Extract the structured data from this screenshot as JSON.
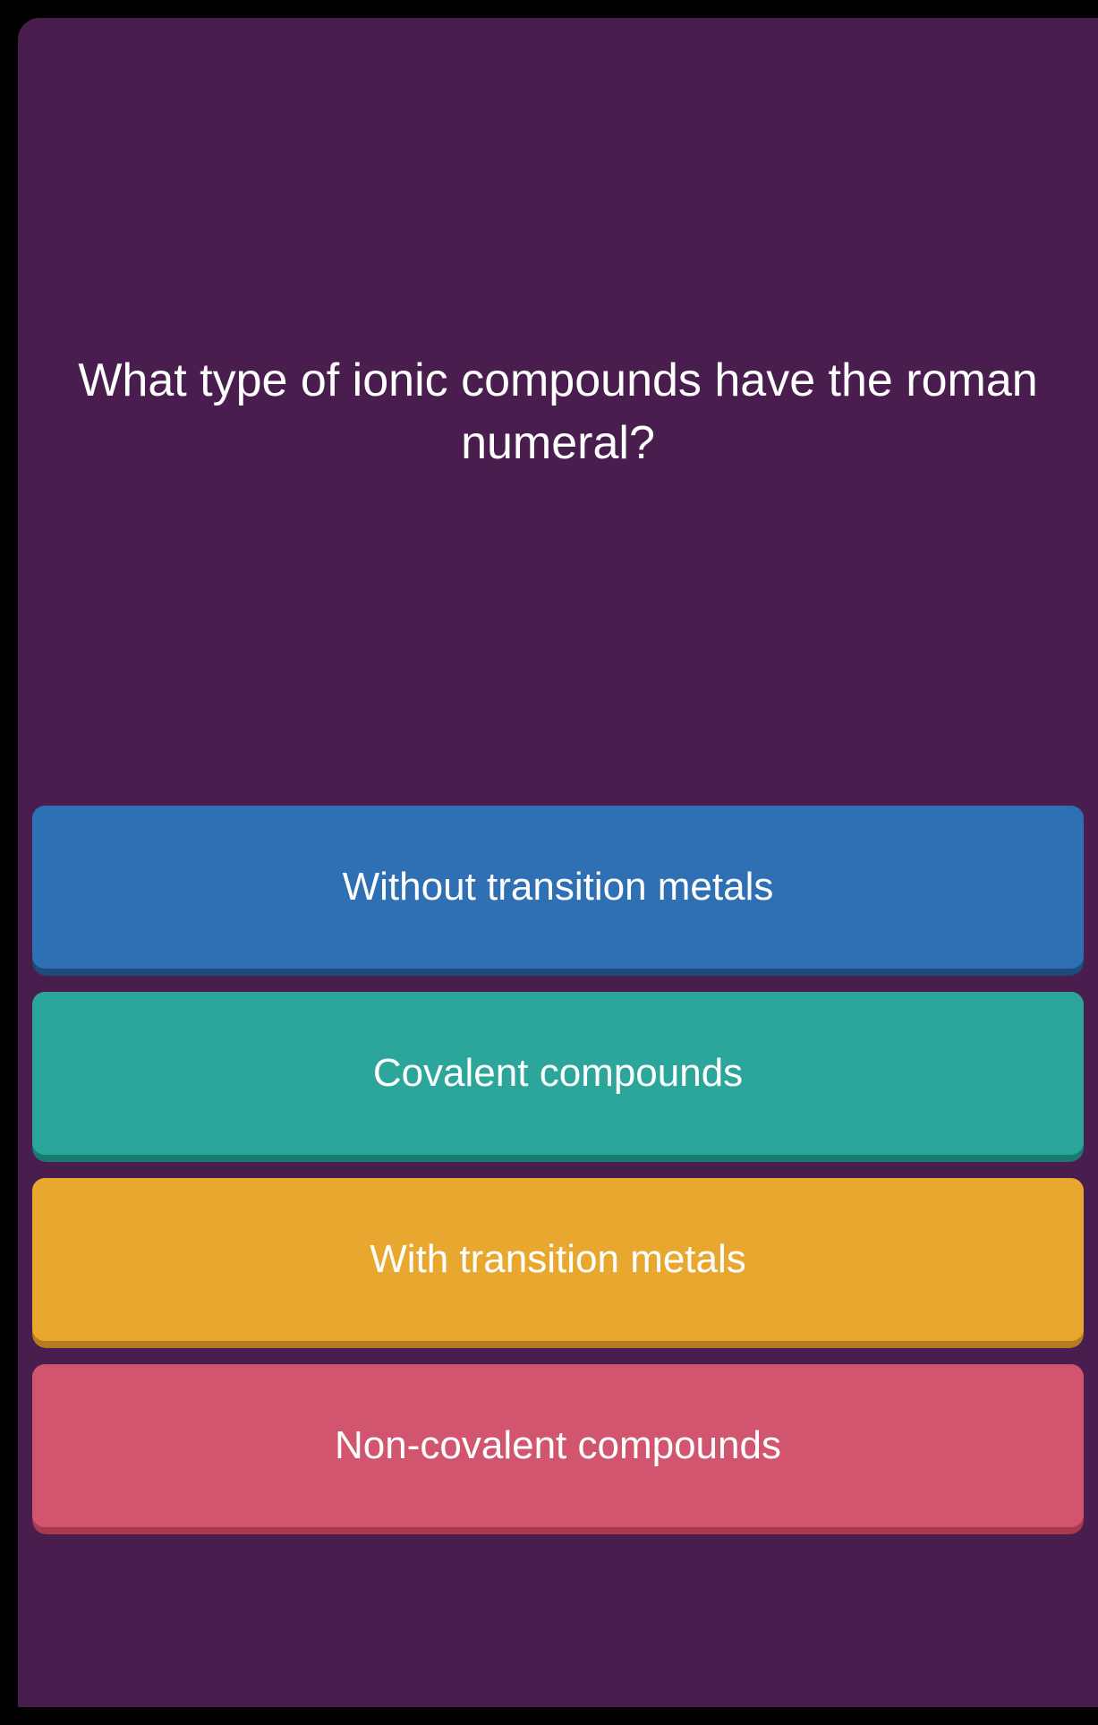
{
  "quiz": {
    "question": "What type of ionic compounds have the roman numeral?",
    "answers": [
      {
        "label": "Without transition metals",
        "color_class": "answer-blue",
        "bg_color": "#2f6fb3",
        "shadow_color": "#1a4d7a"
      },
      {
        "label": "Covalent compounds",
        "color_class": "answer-teal",
        "bg_color": "#2ca69a",
        "shadow_color": "#1a7a72"
      },
      {
        "label": "With transition metals",
        "color_class": "answer-yellow",
        "bg_color": "#e8a830",
        "shadow_color": "#b87a1f"
      },
      {
        "label": "Non-covalent compounds",
        "color_class": "answer-red",
        "bg_color": "#d25570",
        "shadow_color": "#a83a50"
      }
    ]
  },
  "styling": {
    "page_bg": "#000000",
    "quiz_bg": "#4a1d4f",
    "question_color": "#ffffff",
    "question_fontsize": 52,
    "answer_label_color": "#ffffff",
    "answer_label_fontsize": 44,
    "answer_height": 190,
    "answer_border_radius": 16,
    "answer_gap": 18
  }
}
